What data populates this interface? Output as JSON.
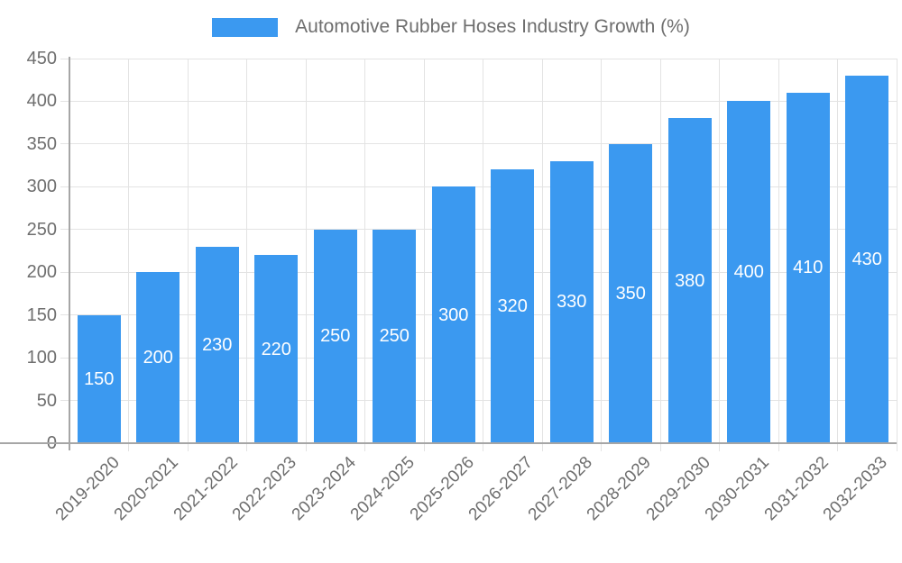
{
  "legend": {
    "label": "Automotive Rubber Hoses Industry Growth (%)",
    "swatch_color": "#3B99F0"
  },
  "chart_data": {
    "type": "bar",
    "title": "Automotive Rubber Hoses Industry Growth (%)",
    "categories": [
      "2019-2020",
      "2020-2021",
      "2021-2022",
      "2022-2023",
      "2023-2024",
      "2024-2025",
      "2025-2026",
      "2026-2027",
      "2027-2028",
      "2028-2029",
      "2029-2030",
      "2030-2031",
      "2031-2032",
      "2032-2033"
    ],
    "values": [
      150,
      200,
      230,
      220,
      250,
      250,
      300,
      320,
      330,
      350,
      380,
      400,
      410,
      430
    ],
    "xlabel": "",
    "ylabel": "",
    "ylim": [
      0,
      450
    ],
    "ytick_step": 50,
    "ytick_labels": [
      "0",
      "50",
      "100",
      "150",
      "200",
      "250",
      "300",
      "350",
      "400",
      "450"
    ],
    "grid": true,
    "legend_position": "top",
    "bar_labels_shown_inside": true,
    "colors": {
      "bar": "#3B99F0",
      "bar_value_text": "#FFFFFF",
      "axis_line": "#A6A6A6",
      "gridline": "#E3E3E3",
      "tick": "#E3E3E3",
      "label_text": "#6E6E6E"
    }
  }
}
